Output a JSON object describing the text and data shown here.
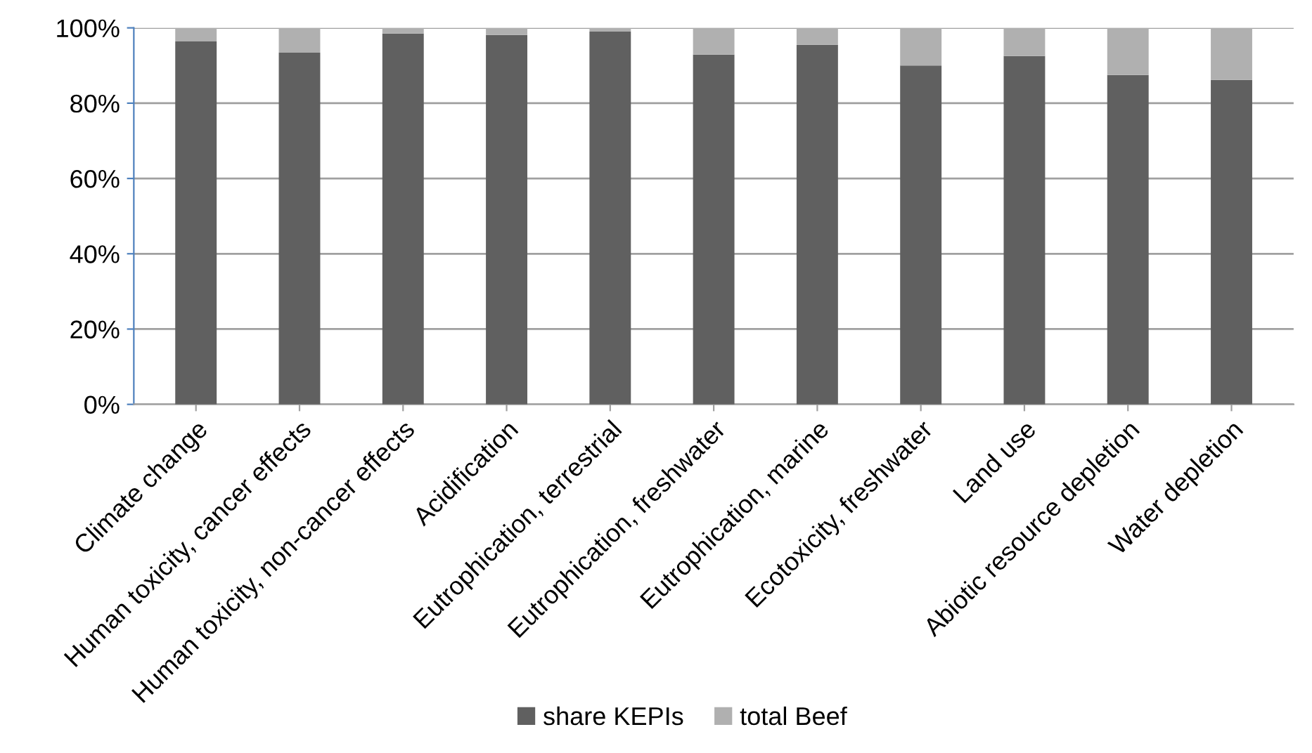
{
  "chart_data": {
    "type": "bar",
    "stacked": true,
    "categories": [
      "Climate change",
      "Human toxicity, cancer effects",
      "Human toxicity, non-cancer effects",
      "Acidification",
      "Eutrophication, terrestrial",
      "Eutrophication, freshwater",
      "Eutrophication, marine",
      "Ecotoxicity, freshwater",
      "Land use",
      "Abiotic resource depletion",
      "Water depletion"
    ],
    "series": [
      {
        "name": "share KEPIs",
        "color": "#606060",
        "values": [
          96.4,
          93.4,
          98.5,
          98.1,
          99.0,
          92.9,
          95.5,
          90.0,
          92.5,
          87.5,
          86.2
        ]
      },
      {
        "name": "total Beef",
        "color": "#b0b0b0",
        "values": [
          3.6,
          6.6,
          1.5,
          1.9,
          1.0,
          7.1,
          4.5,
          10.0,
          7.5,
          12.5,
          13.8
        ]
      }
    ],
    "ylim": [
      0,
      100
    ],
    "yticks": [
      {
        "value": 0,
        "label": "0%"
      },
      {
        "value": 20,
        "label": "20%"
      },
      {
        "value": 40,
        "label": "40%"
      },
      {
        "value": 60,
        "label": "60%"
      },
      {
        "value": 80,
        "label": "80%"
      },
      {
        "value": 100,
        "label": "100%"
      }
    ],
    "grid": "y",
    "legend": "bottom"
  }
}
